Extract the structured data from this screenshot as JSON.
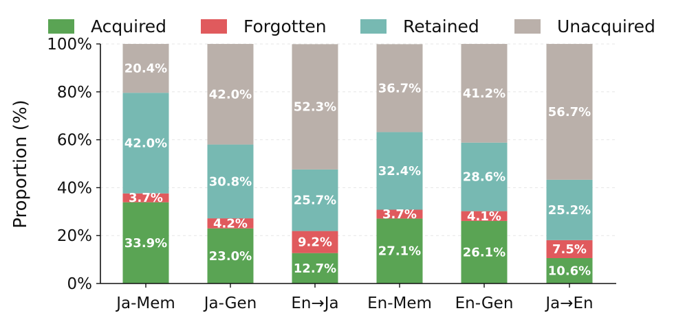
{
  "chart_data": {
    "type": "bar",
    "stacked": true,
    "categories": [
      "Ja-Mem",
      "Ja-Gen",
      "En→Ja",
      "En-Mem",
      "En-Gen",
      "Ja→En"
    ],
    "series": [
      {
        "name": "Acquired",
        "color": "#5aa454",
        "values": [
          33.9,
          23.0,
          12.7,
          27.1,
          26.1,
          10.6
        ]
      },
      {
        "name": "Forgotten",
        "color": "#e05a5d",
        "values": [
          3.7,
          4.2,
          9.2,
          3.7,
          4.1,
          7.5
        ]
      },
      {
        "name": "Retained",
        "color": "#77b9b2",
        "values": [
          42.0,
          30.8,
          25.7,
          32.4,
          28.6,
          25.2
        ]
      },
      {
        "name": "Unacquired",
        "color": "#bab0aa",
        "values": [
          20.4,
          42.0,
          52.3,
          36.7,
          41.2,
          56.7
        ]
      }
    ],
    "ylabel": "Proportion (%)",
    "ylim": [
      0,
      100
    ],
    "yticks": [
      "0%",
      "20%",
      "40%",
      "60%",
      "80%",
      "100%"
    ],
    "legend_position": "top",
    "grid": true
  }
}
